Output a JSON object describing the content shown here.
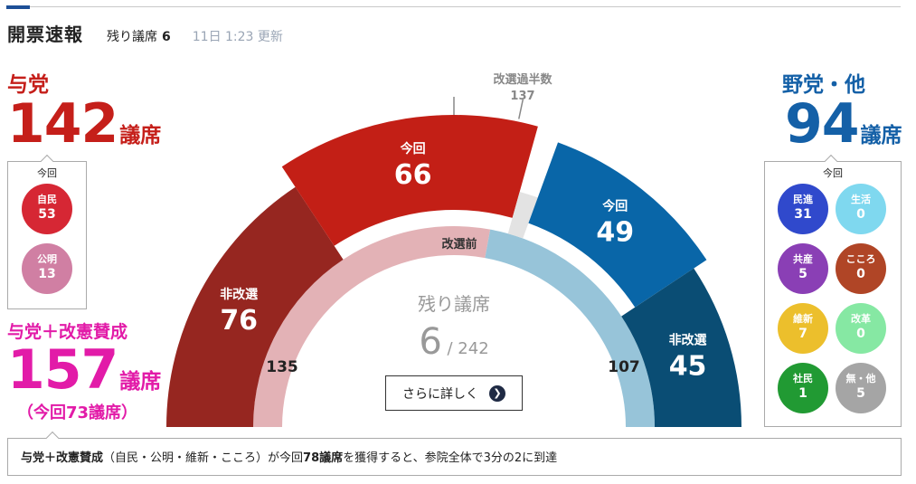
{
  "header": {
    "title": "開票速報",
    "remain_label": "残り議席",
    "remain_count": "6",
    "updated": "11日 1:23 更新"
  },
  "ruling": {
    "name": "与党",
    "total": "142",
    "unit": "議席",
    "box_caption": "今回",
    "parties": [
      {
        "name": "自民",
        "value": "53",
        "color": "#d62734"
      },
      {
        "name": "公明",
        "value": "13",
        "color": "#d07fa3"
      }
    ]
  },
  "amend": {
    "title": "与党＋改憲賛成",
    "total": "157",
    "unit": "議席",
    "sub": "（今回73議席）"
  },
  "opposition": {
    "name": "野党・他",
    "total": "94",
    "unit": "議席",
    "box_caption": "今回",
    "parties": [
      {
        "name": "民進",
        "value": "31",
        "color": "#3049cc"
      },
      {
        "name": "生活",
        "value": "0",
        "color": "#7fd8ef"
      },
      {
        "name": "共産",
        "value": "5",
        "color": "#8a3fb5"
      },
      {
        "name": "こころ",
        "value": "0",
        "color": "#b04526"
      },
      {
        "name": "維新",
        "value": "7",
        "color": "#ecbf2c"
      },
      {
        "name": "改革",
        "value": "0",
        "color": "#86e8a3"
      },
      {
        "name": "社民",
        "value": "1",
        "color": "#219a33"
      },
      {
        "name": "無・他",
        "value": "5",
        "color": "#a5a5a5"
      }
    ]
  },
  "chart_data": {
    "type": "pie",
    "title": "",
    "total_seats": 242,
    "majority_label": "改選過半数",
    "majority_value": "137",
    "center_label": "残り議席",
    "center_value": "6",
    "center_total": "/ 242",
    "inner_label": "改選前",
    "inner_left_value": "135",
    "inner_right_value": "107",
    "outer_segments": [
      {
        "label": "非改選",
        "value": 76,
        "side": "ruling",
        "color": "#962620"
      },
      {
        "label": "今回",
        "value": 66,
        "side": "ruling",
        "color": "#c31f16"
      },
      {
        "label": "",
        "value": 6,
        "side": "remaining",
        "color": "#e3e3e3"
      },
      {
        "label": "今回",
        "value": 49,
        "side": "opposition",
        "color": "#0966a8"
      },
      {
        "label": "非改選",
        "value": 45,
        "side": "opposition",
        "color": "#0a4d74"
      }
    ],
    "inner_segments": [
      {
        "value": 135,
        "side": "ruling",
        "color": "#e3b2b6"
      },
      {
        "value": 107,
        "side": "opposition",
        "color": "#97c4d9"
      }
    ]
  },
  "detail_button": {
    "label": "さらに詳しく",
    "icon": "chevron-right-icon"
  },
  "footer": {
    "strong": "与党＋改憲賛成",
    "text": "（自民・公明・維新・こころ）が今回",
    "strong2": "78議席",
    "text2": "を獲得すると、参院全体で3分の2に到達"
  }
}
